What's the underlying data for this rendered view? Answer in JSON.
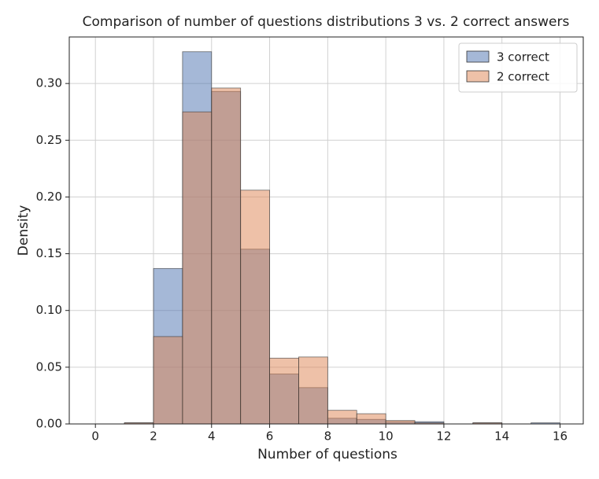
{
  "chart_data": {
    "type": "histogram",
    "title": "Comparison of number of questions distributions 3 vs. 2 correct answers",
    "x_label": "Number of questions",
    "y_label": "Density",
    "bins": [
      0,
      1,
      2,
      3,
      4,
      5,
      6,
      7,
      8,
      9,
      10,
      11,
      12,
      13,
      14,
      15,
      16
    ],
    "series": [
      {
        "name": "3 correct",
        "color": "#4c72b0",
        "values": [
          0,
          0.001,
          0.137,
          0.328,
          0.293,
          0.154,
          0.044,
          0.032,
          0.005,
          0.004,
          0.002,
          0.002,
          0,
          0.001,
          0,
          0.001
        ]
      },
      {
        "name": "2 correct",
        "color": "#dd8452",
        "values": [
          0,
          0.001,
          0.077,
          0.275,
          0.296,
          0.206,
          0.058,
          0.059,
          0.012,
          0.009,
          0.003,
          0.001,
          0,
          0.001,
          0,
          0
        ]
      }
    ],
    "xlim": [
      -0.9,
      16.8
    ],
    "ylim": [
      0,
      0.341
    ],
    "xticks": [
      0,
      2,
      4,
      6,
      8,
      10,
      12,
      14,
      16
    ],
    "yticks": [
      {
        "value": 0,
        "label": "0.00"
      },
      {
        "value": 0.05,
        "label": "0.05"
      },
      {
        "value": 0.1,
        "label": "0.10"
      },
      {
        "value": 0.15,
        "label": "0.15"
      },
      {
        "value": 0.2,
        "label": "0.20"
      },
      {
        "value": 0.25,
        "label": "0.25"
      },
      {
        "value": 0.3,
        "label": "0.30"
      }
    ],
    "grid": true,
    "legend": "upper right"
  }
}
